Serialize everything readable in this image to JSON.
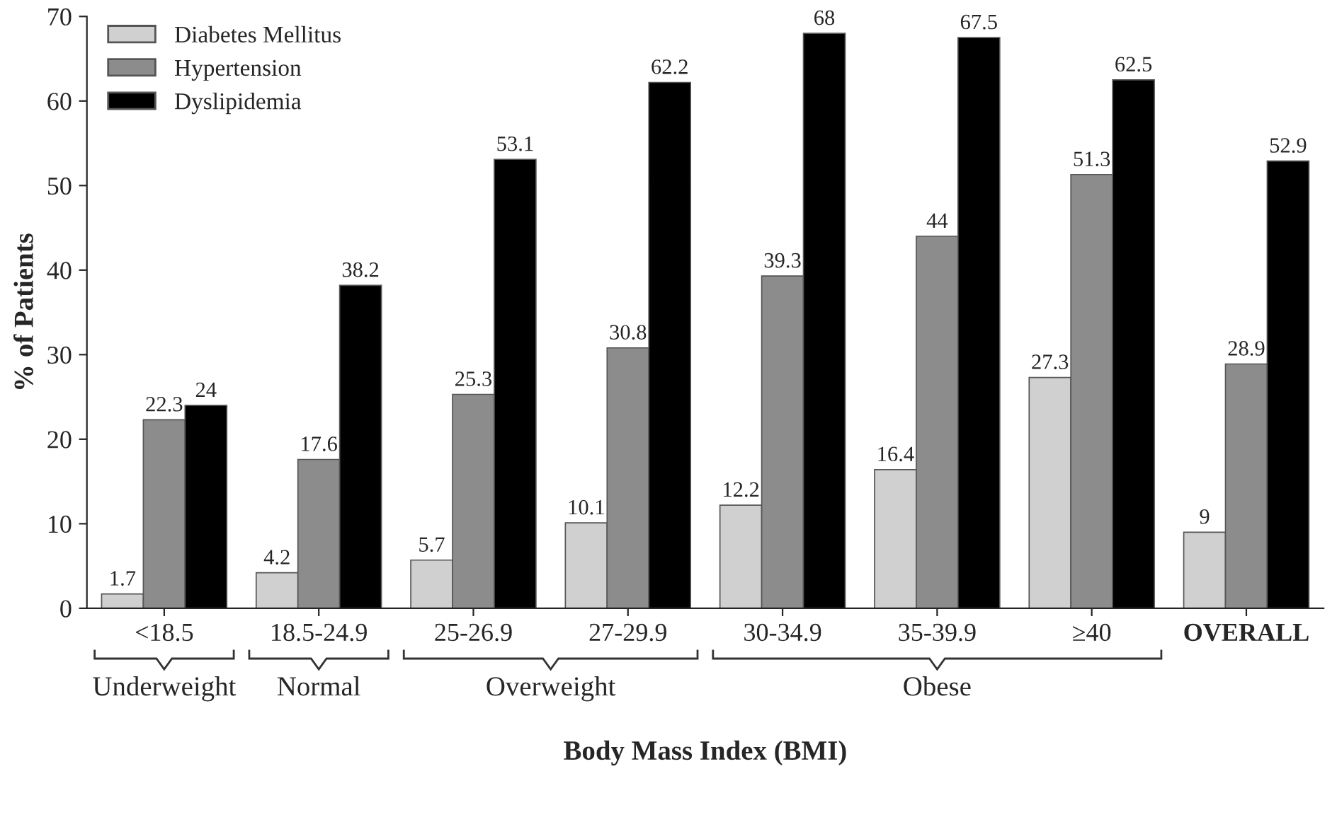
{
  "chart_data": {
    "type": "bar",
    "xlabel": "Body Mass Index (BMI)",
    "ylabel": "% of Patients",
    "categories": [
      "<18.5",
      "18.5-24.9",
      "25-26.9",
      "27-29.9",
      "30-34.9",
      "35-39.9",
      "≥40",
      "OVERALL"
    ],
    "series": [
      {
        "name": "Diabetes Mellitus",
        "color": "#d0d0d0",
        "values": [
          1.7,
          4.2,
          5.7,
          10.1,
          12.2,
          16.4,
          27.3,
          9
        ]
      },
      {
        "name": "Hypertension",
        "color": "#8c8c8c",
        "values": [
          22.3,
          17.6,
          25.3,
          30.8,
          39.3,
          44,
          51.3,
          28.9
        ]
      },
      {
        "name": "Dyslipidemia",
        "color": "#000000",
        "values": [
          24,
          38.2,
          53.1,
          62.2,
          68,
          67.5,
          62.5,
          52.9
        ]
      }
    ],
    "ylim": [
      0,
      70
    ],
    "yticks": [
      0,
      10,
      20,
      30,
      40,
      50,
      60,
      70
    ],
    "data_labels": true,
    "legend": "top left",
    "grid": false,
    "annotations": [
      "Underweight",
      "Normal",
      "Overweight",
      "Obese"
    ]
  }
}
